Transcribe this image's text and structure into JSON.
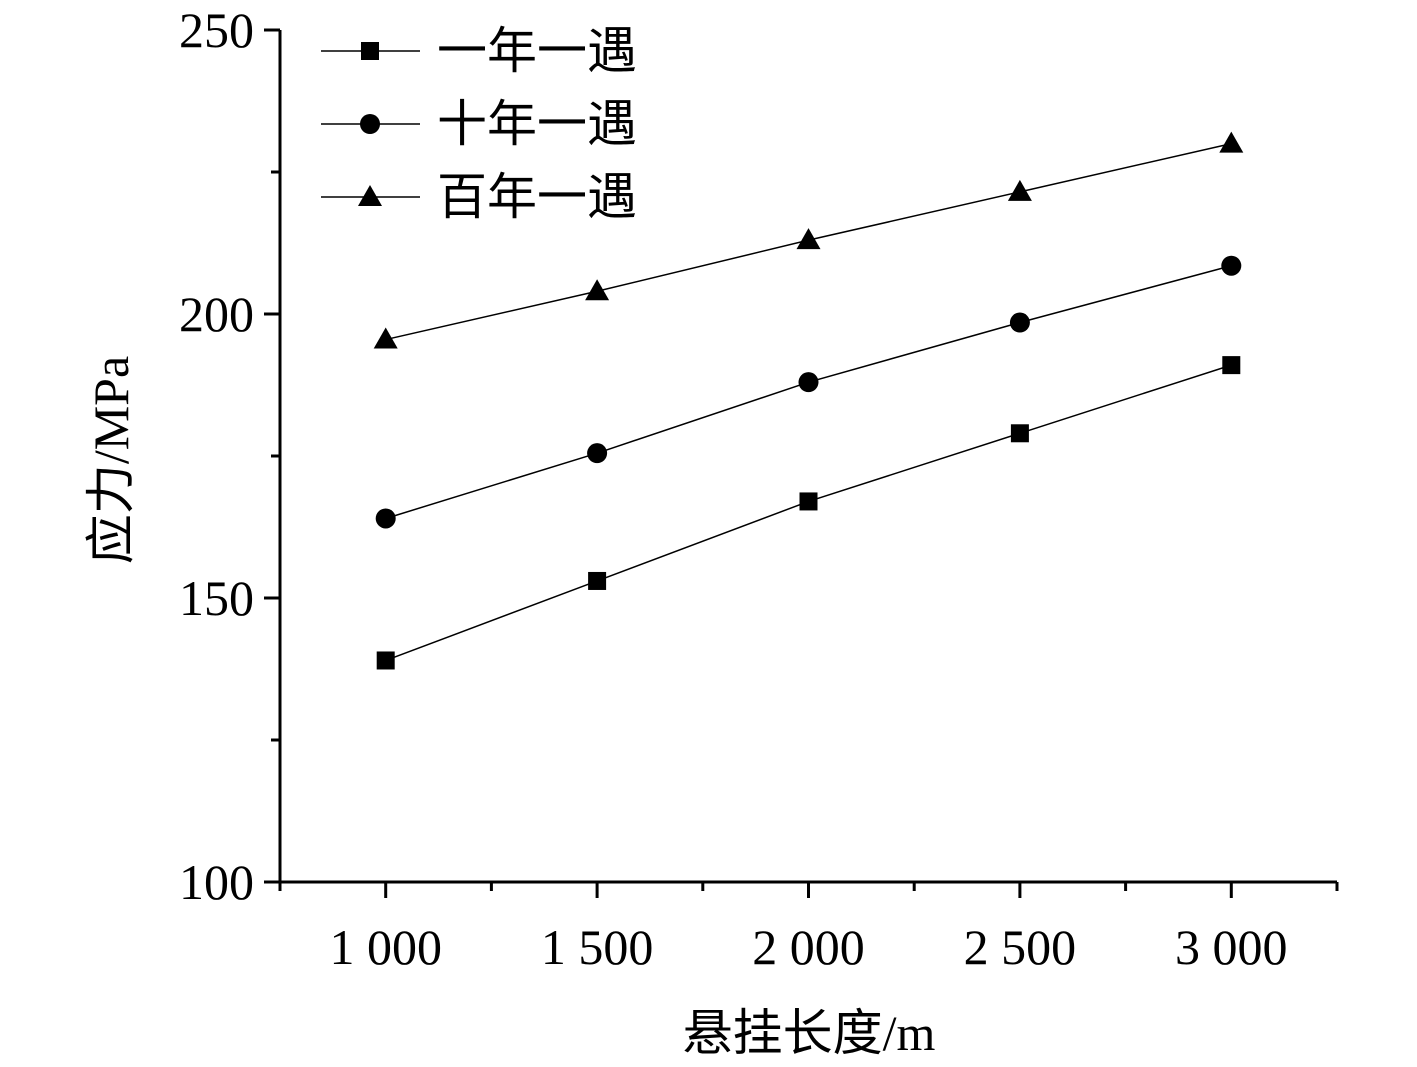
{
  "chart_data": {
    "type": "line",
    "title": "",
    "xlabel": "悬挂长度/m",
    "ylabel": "应力/MPa",
    "xlim": [
      750,
      3250
    ],
    "ylim": [
      100,
      250
    ],
    "x": [
      1000,
      1500,
      2000,
      2500,
      3000
    ],
    "x_tick_labels": [
      "1 000",
      "1 500",
      "2 000",
      "2 500",
      "3 000"
    ],
    "x_minor_ticks": [
      750,
      1250,
      1750,
      2250,
      2750,
      3250
    ],
    "y_ticks": [
      100,
      150,
      200,
      250
    ],
    "y_tick_labels": [
      "100",
      "150",
      "200",
      "250"
    ],
    "y_minor_ticks": [
      125,
      175,
      225
    ],
    "grid": false,
    "legend_position": "top-left",
    "series": [
      {
        "name": "一年一遇",
        "marker": "square",
        "values": [
          139,
          153,
          167,
          179,
          191
        ]
      },
      {
        "name": "十年一遇",
        "marker": "circle",
        "values": [
          164,
          175.5,
          188,
          198.5,
          208.5
        ]
      },
      {
        "name": "百年一遇",
        "marker": "triangle",
        "values": [
          195.5,
          204,
          213,
          221.5,
          230
        ]
      }
    ]
  }
}
